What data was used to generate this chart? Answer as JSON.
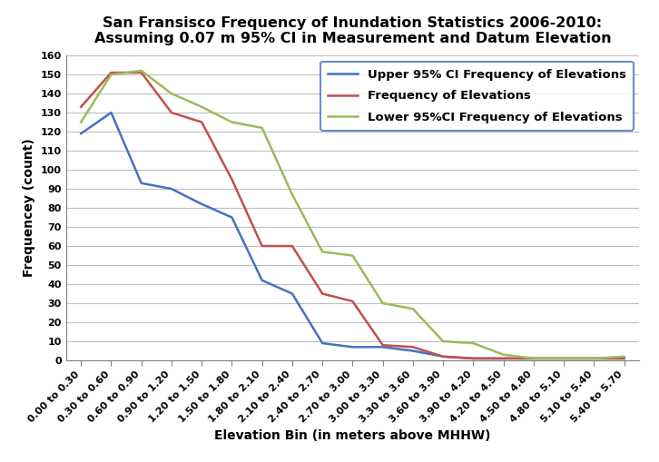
{
  "title_line1": "San Fransisco Frequency of Inundation Statistics 2006-2010:",
  "title_line2": "Assuming 0.07 m 95% CI in Measurement and Datum Elevation",
  "xlabel": "Elevation Bin (in meters above MHHW)",
  "ylabel": "Frequencey (count)",
  "categories": [
    "0.00 to 0.30",
    "0.30 to 0.60",
    "0.60 to 0.90",
    "0.90 to 1.20",
    "1.20 to 1.50",
    "1.50 to 1.80",
    "1.80 to 2.10",
    "2.10 to 2.40",
    "2.40 to 2.70",
    "2.70 to 3.00",
    "3.00 to 3.30",
    "3.30 to 3.60",
    "3.60 to 3.90",
    "3.90 to 4.20",
    "4.20 to 4.50",
    "4.50 to 4.80",
    "4.80 to 5.10",
    "5.10 to 5.40",
    "5.40 to 5.70"
  ],
  "upper_ci": [
    119,
    130,
    93,
    90,
    82,
    75,
    42,
    35,
    9,
    7,
    7,
    5,
    2,
    1,
    1,
    1,
    1,
    1,
    1
  ],
  "freq": [
    133,
    151,
    151,
    130,
    125,
    95,
    60,
    60,
    35,
    31,
    8,
    7,
    2,
    1,
    1,
    1,
    1,
    1,
    1
  ],
  "lower_ci": [
    125,
    150,
    152,
    140,
    133,
    125,
    122,
    87,
    57,
    55,
    30,
    27,
    10,
    9,
    3,
    1,
    1,
    1,
    2
  ],
  "upper_ci_color": "#4472C4",
  "freq_color": "#C0504D",
  "lower_ci_color": "#9BBB59",
  "upper_ci_label": "Upper 95% CI Frequency of Elevations",
  "freq_label": "Frequency of Elevations",
  "lower_ci_label": "Lower 95%CI Frequency of Elevations",
  "ylim": [
    0,
    160
  ],
  "yticks": [
    0,
    10,
    20,
    30,
    40,
    50,
    60,
    70,
    80,
    90,
    100,
    110,
    120,
    130,
    140,
    150,
    160
  ],
  "bg_color": "#FFFFFF",
  "grid_color": "#BFBFBF",
  "title_fontsize": 11.5,
  "axis_label_fontsize": 10,
  "tick_fontsize": 8,
  "legend_fontsize": 9.5,
  "line_width": 1.8
}
